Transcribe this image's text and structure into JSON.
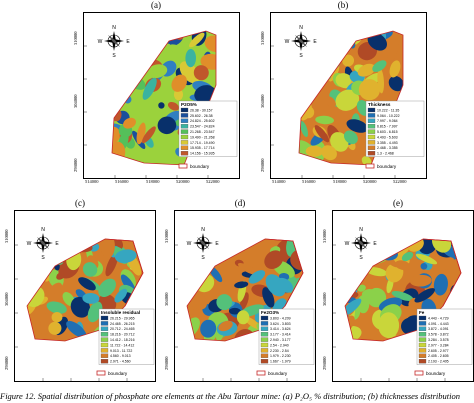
{
  "panels": [
    {
      "id": "a",
      "label": "(a)",
      "legend_title": "P2O5%",
      "legend_items": [
        "26.38 - 30.157",
        "25.602 - 26.38",
        "24.824 - 25.602",
        "23.547 - 24.824",
        "21.268 - 23.547",
        "19.490 - 21.268",
        "17.714 - 19.490",
        "15.935 - 17.714",
        "14.156 - 15.935"
      ],
      "colors": [
        "#08306b",
        "#1a4f9c",
        "#2f7fc1",
        "#3ab3a0",
        "#55c05a",
        "#9bd23c",
        "#d9c935",
        "#e08e2a",
        "#c0572b"
      ],
      "y_ticks": [
        "310000",
        "304000",
        "298000"
      ],
      "x_ticks": [
        "514000",
        "516000",
        "518000",
        "520000",
        "522000"
      ],
      "boundary_label": "boundary"
    },
    {
      "id": "b",
      "label": "(b)",
      "legend_title": "Thickness",
      "legend_items": [
        "10.222 - 11.35",
        "9.064 - 10.222",
        "7.997 - 9.064",
        "6.815 - 7.997",
        "5.603 - 6.815",
        "4.493 - 5.603",
        "3.355 - 4.493",
        "2.468 - 3.355",
        "1.3 - 2.468"
      ],
      "colors": [
        "#08306b",
        "#1f6fb3",
        "#36a6c0",
        "#54c17a",
        "#8bd14a",
        "#c9d63a",
        "#e0b22e",
        "#d47d2a",
        "#b04a26"
      ],
      "y_ticks": [
        "310000",
        "304000",
        "298000"
      ],
      "x_ticks": [
        "514000",
        "516000",
        "518000",
        "520000",
        "522000"
      ],
      "boundary_label": "boundary"
    },
    {
      "id": "c",
      "label": "(c)",
      "legend_title": "Insoluble residual",
      "legend_items": [
        "26.215 - 29.965",
        "24.465 - 26.215",
        "20.712 - 24.465",
        "18.216 - 20.712",
        "14.412 - 18.216",
        "11.722 - 14.412",
        "9.013 - 11.722",
        "4.560 - 9.013",
        "2.971 - 4.560"
      ],
      "colors": [
        "#08306b",
        "#1f6fb3",
        "#36a6c0",
        "#54c17a",
        "#8bd14a",
        "#c9d63a",
        "#e0b22e",
        "#d47d2a",
        "#b04a26"
      ],
      "y_ticks": [
        "310000",
        "304000",
        "298000"
      ],
      "x_ticks": [
        "514000",
        "516000",
        "518000",
        "520000",
        "522000"
      ],
      "boundary_label": "boundary"
    },
    {
      "id": "d",
      "label": "(d)",
      "legend_title": "Fe2O3%",
      "legend_items": [
        "3.803 - 4.209",
        "3.624 - 3.803",
        "3.414 - 3.624",
        "3.177 - 3.414",
        "2.940 - 3.177",
        "2.54 - 2.940",
        "2.230 - 2.54",
        "1.979 - 2.230",
        "1.667 - 1.979"
      ],
      "colors": [
        "#08306b",
        "#1f6fb3",
        "#36a6c0",
        "#54c17a",
        "#8bd14a",
        "#c9d63a",
        "#e0b22e",
        "#d47d2a",
        "#b04a26"
      ],
      "y_ticks": [
        "310000",
        "304000",
        "298000"
      ],
      "x_ticks": [
        "514000",
        "516000",
        "518000",
        "520000",
        "522000"
      ],
      "boundary_label": "boundary"
    },
    {
      "id": "e",
      "label": "(e)",
      "legend_title": "Fe",
      "legend_items": [
        "4.443 - 4.729",
        "4.091 - 4.443",
        "3.872 - 4.091",
        "3.578 - 3.872",
        "3.284 - 3.578",
        "2.977 - 3.284",
        "2.605 - 2.977",
        "2.405 - 2.605",
        "2.193 - 2.405"
      ],
      "colors": [
        "#08306b",
        "#1f6fb3",
        "#36a6c0",
        "#54c17a",
        "#8bd14a",
        "#c9d63a",
        "#e0b22e",
        "#d47d2a",
        "#b04a26"
      ],
      "y_ticks": [
        "310000",
        "304000",
        "298000"
      ],
      "x_ticks": [
        "514000",
        "516000",
        "518000",
        "520000",
        "522000"
      ],
      "boundary_label": "boundary"
    }
  ],
  "compass": {
    "n": "N",
    "s": "S",
    "e": "E",
    "w": "W"
  },
  "caption": "Figure 12. Spatial distribution of phosphate ore elements at the Abu Tartour mine: (a) P₂O₅ % distribution; (b) thicknesses distribution"
}
